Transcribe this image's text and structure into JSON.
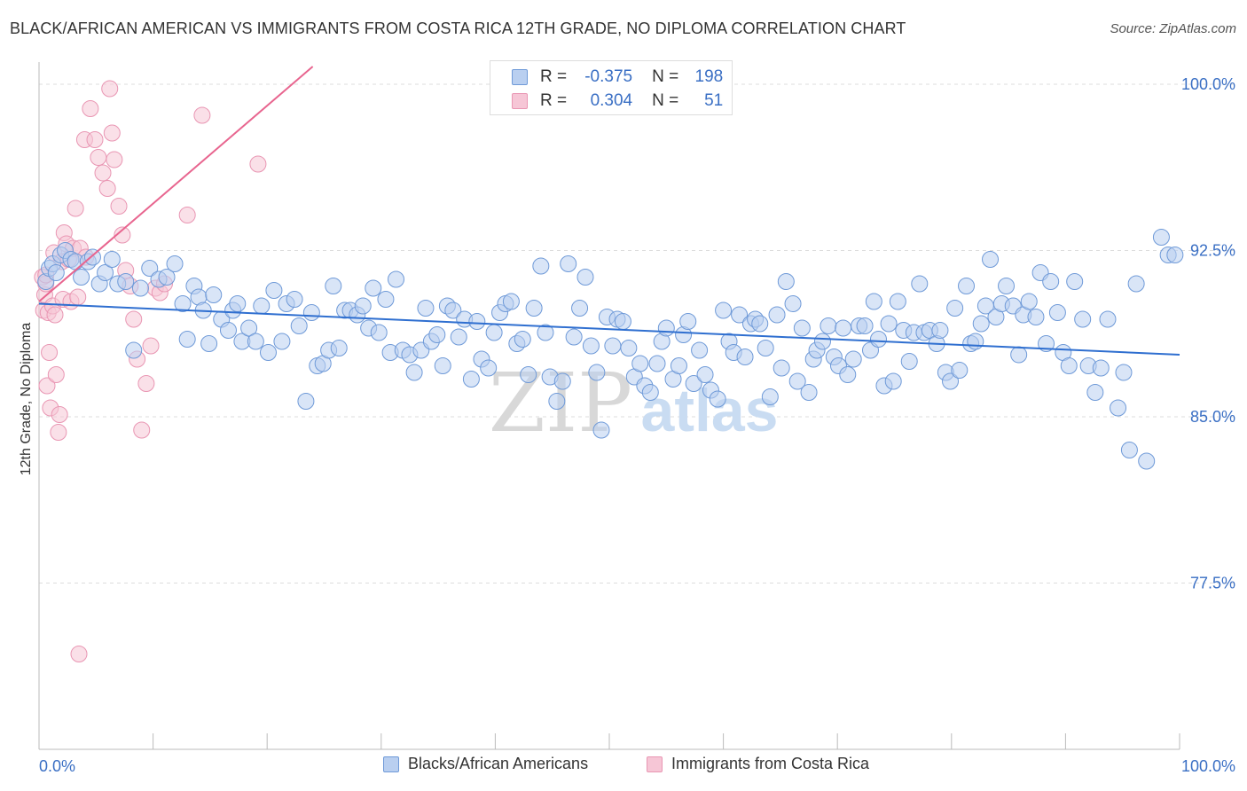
{
  "title": "BLACK/AFRICAN AMERICAN VS IMMIGRANTS FROM COSTA RICA 12TH GRADE, NO DIPLOMA CORRELATION CHART",
  "source": "Source: ZipAtlas.com",
  "watermark": {
    "zip": "ZIP",
    "atlas": "atlas"
  },
  "colors": {
    "blue_fill": "#b9cff0",
    "blue_stroke": "#6f9ad8",
    "blue_line": "#2f6fd0",
    "pink_fill": "#f6c6d6",
    "pink_stroke": "#e996b3",
    "pink_line": "#e8658f",
    "tick_text": "#3a6fc4",
    "grid": "#dcdcdc"
  },
  "stats": {
    "blue": {
      "r_label": "R =",
      "r_value": "-0.375",
      "n_label": "N =",
      "n_value": "198"
    },
    "pink": {
      "r_label": "R =",
      "r_value": "0.304",
      "n_label": "N =",
      "n_value": "51"
    }
  },
  "legend": {
    "blue": "Blacks/African Americans",
    "pink": "Immigrants from Costa Rica"
  },
  "chart_data": {
    "type": "scatter",
    "title": "BLACK/AFRICAN AMERICAN VS IMMIGRANTS FROM COSTA RICA 12TH GRADE, NO DIPLOMA CORRELATION CHART",
    "xlabel": "",
    "ylabel": "12th Grade, No Diploma",
    "xlim": [
      0,
      100
    ],
    "ylim": [
      70.0,
      101.0
    ],
    "x_tick_labels": {
      "left": "0.0%",
      "right": "100.0%"
    },
    "y_ticks": [
      {
        "value": 100.0,
        "label": "100.0%"
      },
      {
        "value": 92.5,
        "label": "92.5%"
      },
      {
        "value": 85.0,
        "label": "85.0%"
      },
      {
        "value": 77.5,
        "label": "77.5%"
      }
    ],
    "series": [
      {
        "name": "Blacks/African Americans",
        "color": "blue",
        "trend": {
          "x": [
            0,
            100
          ],
          "y": [
            90.1,
            87.8
          ]
        },
        "points": [
          [
            0.6,
            91.1
          ],
          [
            0.9,
            91.7
          ],
          [
            1.2,
            91.9
          ],
          [
            1.5,
            91.5
          ],
          [
            1.9,
            92.3
          ],
          [
            2.3,
            92.5
          ],
          [
            2.8,
            92.1
          ],
          [
            3.2,
            92.0
          ],
          [
            3.7,
            91.3
          ],
          [
            4.3,
            92.0
          ],
          [
            4.7,
            92.2
          ],
          [
            5.3,
            91.0
          ],
          [
            5.8,
            91.5
          ],
          [
            6.4,
            92.1
          ],
          [
            6.9,
            91.0
          ],
          [
            7.6,
            91.1
          ],
          [
            8.3,
            88.0
          ],
          [
            8.9,
            90.8
          ],
          [
            9.7,
            91.7
          ],
          [
            10.5,
            91.2
          ],
          [
            11.2,
            91.3
          ],
          [
            11.9,
            91.9
          ],
          [
            12.6,
            90.1
          ],
          [
            13.0,
            88.5
          ],
          [
            13.6,
            90.9
          ],
          [
            14.0,
            90.4
          ],
          [
            14.4,
            89.8
          ],
          [
            14.9,
            88.3
          ],
          [
            15.3,
            90.5
          ],
          [
            16.0,
            89.4
          ],
          [
            16.6,
            88.9
          ],
          [
            17.0,
            89.8
          ],
          [
            17.4,
            90.1
          ],
          [
            17.8,
            88.4
          ],
          [
            18.4,
            89.0
          ],
          [
            19.0,
            88.4
          ],
          [
            19.5,
            90.0
          ],
          [
            20.1,
            87.9
          ],
          [
            20.6,
            90.7
          ],
          [
            21.3,
            88.4
          ],
          [
            21.7,
            90.1
          ],
          [
            22.4,
            90.3
          ],
          [
            22.8,
            89.1
          ],
          [
            23.4,
            85.7
          ],
          [
            23.9,
            89.7
          ],
          [
            24.4,
            87.3
          ],
          [
            24.9,
            87.4
          ],
          [
            25.4,
            88.0
          ],
          [
            25.8,
            90.9
          ],
          [
            26.3,
            88.1
          ],
          [
            26.8,
            89.8
          ],
          [
            27.3,
            89.8
          ],
          [
            27.9,
            89.6
          ],
          [
            28.4,
            90.0
          ],
          [
            28.9,
            89.0
          ],
          [
            29.3,
            90.8
          ],
          [
            29.8,
            88.8
          ],
          [
            30.4,
            90.3
          ],
          [
            30.8,
            87.9
          ],
          [
            31.3,
            91.2
          ],
          [
            31.9,
            88.0
          ],
          [
            32.5,
            87.8
          ],
          [
            32.9,
            87.0
          ],
          [
            33.5,
            88.0
          ],
          [
            33.9,
            89.9
          ],
          [
            34.4,
            88.4
          ],
          [
            34.9,
            88.7
          ],
          [
            35.4,
            87.3
          ],
          [
            35.8,
            90.0
          ],
          [
            36.3,
            89.8
          ],
          [
            36.8,
            88.6
          ],
          [
            37.3,
            89.4
          ],
          [
            37.9,
            86.7
          ],
          [
            38.4,
            89.3
          ],
          [
            38.8,
            87.6
          ],
          [
            39.4,
            87.2
          ],
          [
            39.9,
            88.8
          ],
          [
            40.4,
            89.7
          ],
          [
            40.9,
            90.1
          ],
          [
            41.4,
            90.2
          ],
          [
            41.9,
            88.3
          ],
          [
            42.4,
            88.5
          ],
          [
            42.9,
            86.9
          ],
          [
            43.4,
            89.9
          ],
          [
            44.0,
            91.8
          ],
          [
            44.4,
            88.8
          ],
          [
            44.8,
            86.8
          ],
          [
            45.4,
            85.7
          ],
          [
            45.9,
            86.6
          ],
          [
            46.4,
            91.9
          ],
          [
            46.9,
            88.6
          ],
          [
            47.4,
            89.9
          ],
          [
            47.9,
            91.3
          ],
          [
            48.4,
            88.2
          ],
          [
            48.9,
            87.0
          ],
          [
            49.3,
            84.4
          ],
          [
            49.8,
            89.5
          ],
          [
            50.3,
            88.2
          ],
          [
            50.7,
            89.4
          ],
          [
            51.2,
            89.3
          ],
          [
            51.7,
            88.1
          ],
          [
            52.2,
            86.8
          ],
          [
            52.7,
            87.4
          ],
          [
            53.1,
            86.4
          ],
          [
            53.6,
            86.1
          ],
          [
            54.2,
            87.4
          ],
          [
            54.6,
            88.4
          ],
          [
            55.0,
            89.0
          ],
          [
            55.6,
            86.7
          ],
          [
            56.1,
            87.3
          ],
          [
            56.5,
            88.7
          ],
          [
            56.9,
            89.3
          ],
          [
            57.4,
            86.5
          ],
          [
            57.9,
            88.0
          ],
          [
            58.4,
            86.9
          ],
          [
            58.9,
            86.2
          ],
          [
            59.5,
            85.8
          ],
          [
            60.0,
            89.8
          ],
          [
            60.5,
            88.4
          ],
          [
            60.9,
            87.9
          ],
          [
            61.4,
            89.6
          ],
          [
            61.9,
            87.7
          ],
          [
            62.4,
            89.2
          ],
          [
            62.8,
            89.4
          ],
          [
            63.2,
            89.2
          ],
          [
            63.7,
            88.1
          ],
          [
            64.1,
            85.9
          ],
          [
            64.7,
            89.6
          ],
          [
            65.1,
            87.2
          ],
          [
            65.5,
            91.1
          ],
          [
            66.1,
            90.1
          ],
          [
            66.5,
            86.6
          ],
          [
            66.9,
            89.0
          ],
          [
            67.5,
            86.1
          ],
          [
            67.9,
            87.6
          ],
          [
            68.2,
            88.0
          ],
          [
            68.7,
            88.4
          ],
          [
            69.2,
            89.1
          ],
          [
            69.7,
            87.7
          ],
          [
            70.1,
            87.3
          ],
          [
            70.5,
            89.0
          ],
          [
            70.9,
            86.9
          ],
          [
            71.4,
            87.6
          ],
          [
            71.9,
            89.1
          ],
          [
            72.4,
            89.1
          ],
          [
            72.9,
            88.0
          ],
          [
            73.2,
            90.2
          ],
          [
            73.6,
            88.5
          ],
          [
            74.1,
            86.4
          ],
          [
            74.5,
            89.2
          ],
          [
            74.9,
            86.6
          ],
          [
            75.3,
            90.2
          ],
          [
            75.8,
            88.9
          ],
          [
            76.3,
            87.5
          ],
          [
            76.7,
            88.8
          ],
          [
            77.2,
            91.0
          ],
          [
            77.6,
            88.8
          ],
          [
            78.1,
            88.9
          ],
          [
            78.7,
            88.3
          ],
          [
            79.0,
            88.9
          ],
          [
            79.5,
            87.0
          ],
          [
            79.9,
            86.6
          ],
          [
            80.3,
            89.9
          ],
          [
            80.7,
            87.1
          ],
          [
            81.3,
            90.9
          ],
          [
            81.7,
            88.3
          ],
          [
            82.1,
            88.4
          ],
          [
            82.6,
            89.2
          ],
          [
            83.0,
            90.0
          ],
          [
            83.4,
            92.1
          ],
          [
            83.9,
            89.5
          ],
          [
            84.4,
            90.1
          ],
          [
            84.8,
            90.9
          ],
          [
            85.4,
            90.0
          ],
          [
            85.9,
            87.8
          ],
          [
            86.3,
            89.6
          ],
          [
            86.8,
            90.2
          ],
          [
            87.4,
            89.5
          ],
          [
            87.8,
            91.5
          ],
          [
            88.3,
            88.3
          ],
          [
            88.7,
            91.1
          ],
          [
            89.3,
            89.7
          ],
          [
            89.8,
            87.9
          ],
          [
            90.3,
            87.3
          ],
          [
            90.8,
            91.1
          ],
          [
            91.5,
            89.4
          ],
          [
            92.0,
            87.3
          ],
          [
            92.6,
            86.1
          ],
          [
            93.1,
            87.2
          ],
          [
            93.7,
            89.4
          ],
          [
            94.6,
            85.4
          ],
          [
            95.1,
            87.0
          ],
          [
            95.6,
            83.5
          ],
          [
            96.2,
            91.0
          ],
          [
            97.1,
            83.0
          ],
          [
            98.4,
            93.1
          ],
          [
            99.0,
            92.3
          ],
          [
            99.6,
            92.3
          ]
        ]
      },
      {
        "name": "Immigrants from Costa Rica",
        "color": "pink",
        "trend": {
          "x": [
            0.0,
            24.0
          ],
          "y": [
            90.2,
            100.8
          ]
        },
        "points": [
          [
            0.3,
            91.3
          ],
          [
            0.4,
            89.8
          ],
          [
            0.5,
            90.5
          ],
          [
            0.6,
            91.0
          ],
          [
            0.7,
            86.4
          ],
          [
            0.8,
            89.7
          ],
          [
            0.9,
            87.9
          ],
          [
            1.0,
            85.4
          ],
          [
            1.2,
            90.0
          ],
          [
            1.3,
            92.4
          ],
          [
            1.4,
            89.6
          ],
          [
            1.5,
            86.9
          ],
          [
            1.7,
            84.3
          ],
          [
            1.8,
            85.1
          ],
          [
            2.0,
            92.0
          ],
          [
            2.1,
            90.3
          ],
          [
            2.2,
            93.3
          ],
          [
            2.4,
            92.8
          ],
          [
            2.6,
            92.1
          ],
          [
            2.8,
            90.2
          ],
          [
            3.0,
            92.6
          ],
          [
            3.2,
            94.4
          ],
          [
            3.4,
            90.4
          ],
          [
            3.6,
            92.6
          ],
          [
            4.0,
            97.5
          ],
          [
            4.5,
            98.9
          ],
          [
            4.9,
            97.5
          ],
          [
            5.2,
            96.7
          ],
          [
            5.6,
            96.0
          ],
          [
            6.0,
            95.3
          ],
          [
            6.2,
            99.8
          ],
          [
            6.4,
            97.8
          ],
          [
            6.6,
            96.6
          ],
          [
            7.0,
            94.5
          ],
          [
            7.3,
            93.2
          ],
          [
            7.6,
            91.6
          ],
          [
            8.0,
            90.9
          ],
          [
            8.3,
            89.4
          ],
          [
            8.6,
            87.6
          ],
          [
            9.0,
            84.4
          ],
          [
            9.4,
            86.5
          ],
          [
            9.8,
            88.2
          ],
          [
            10.2,
            90.8
          ],
          [
            10.6,
            90.6
          ],
          [
            11.0,
            91.0
          ],
          [
            13.0,
            94.1
          ],
          [
            14.3,
            98.6
          ],
          [
            19.2,
            96.4
          ],
          [
            3.5,
            74.3
          ],
          [
            0.6,
            91.4
          ],
          [
            4.1,
            92.2
          ]
        ]
      }
    ]
  }
}
